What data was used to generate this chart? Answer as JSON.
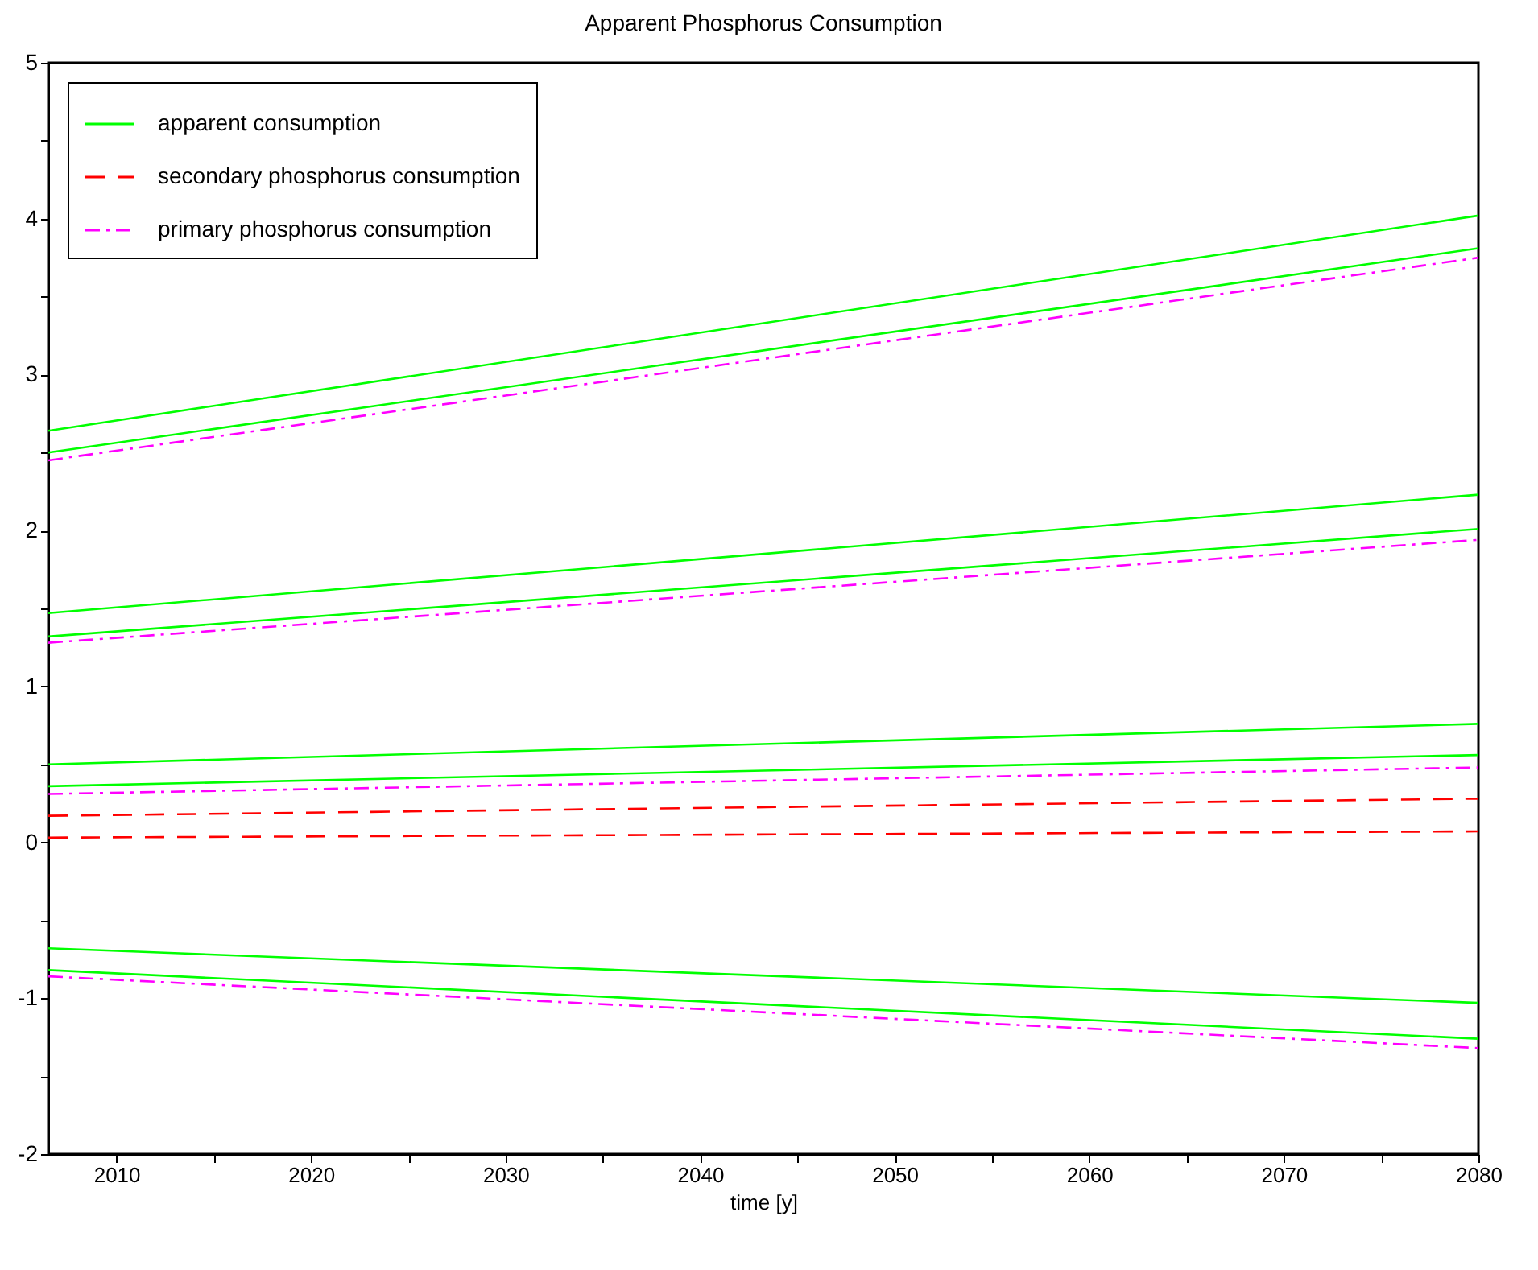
{
  "chart_data": {
    "type": "line",
    "title": "Apparent Phosphorus Consumption",
    "xlabel": "time [y]",
    "xlim": [
      2006.5,
      2080
    ],
    "ylim": [
      -2,
      5
    ],
    "xticks": [
      2010,
      {
        "value": 2015,
        "label": null
      },
      2020,
      {
        "value": 2025,
        "label": null
      },
      2030,
      {
        "value": 2035,
        "label": null
      },
      2040,
      {
        "value": 2045,
        "label": null
      },
      2050,
      {
        "value": 2055,
        "label": null
      },
      2060,
      {
        "value": 2065,
        "label": null
      },
      2070,
      {
        "value": 2075,
        "label": null
      },
      2080
    ],
    "yticks": [
      -2,
      {
        "value": -1.5,
        "label": null
      },
      -1,
      {
        "value": -0.5,
        "label": null
      },
      0,
      {
        "value": 0.5,
        "label": null
      },
      1,
      {
        "value": 1.5,
        "label": null
      },
      2,
      {
        "value": 2.5,
        "label": null
      },
      3,
      {
        "value": 3.5,
        "label": null
      },
      4,
      {
        "value": 4.5,
        "label": null
      },
      5
    ],
    "grid": false,
    "legend": "top left",
    "marker": "none",
    "x": [
      2006.5,
      2080
    ],
    "series": [
      {
        "name": "apparent consumption",
        "color": "#00ff00",
        "line_style": "solid",
        "values": [
          2.64,
          4.02
        ]
      },
      {
        "name": "secondary phosphorus consumption",
        "color": "#ff0000",
        "line_style": "dashed",
        "values": [
          0.17,
          0.28
        ]
      },
      {
        "name": "primary phosphorus consumption",
        "color": "#ff00ff",
        "line_style": "dashdot",
        "values": [
          2.45,
          3.75
        ]
      },
      {
        "color": "#00ff00",
        "line_style": "solid",
        "values": [
          2.5,
          3.81
        ]
      },
      {
        "color": "#00ff00",
        "line_style": "solid",
        "values": [
          1.47,
          2.23
        ]
      },
      {
        "color": "#00ff00",
        "line_style": "solid",
        "values": [
          1.32,
          2.01
        ]
      },
      {
        "color": "#00ff00",
        "line_style": "solid",
        "values": [
          0.5,
          0.76
        ]
      },
      {
        "color": "#00ff00",
        "line_style": "solid",
        "values": [
          0.36,
          0.56
        ]
      },
      {
        "color": "#00ff00",
        "line_style": "solid",
        "values": [
          -0.68,
          -1.03
        ]
      },
      {
        "color": "#00ff00",
        "line_style": "solid",
        "values": [
          -0.82,
          -1.26
        ]
      },
      {
        "color": "#ff00ff",
        "line_style": "dashdot",
        "values": [
          1.28,
          1.94
        ]
      },
      {
        "color": "#ff00ff",
        "line_style": "dashdot",
        "values": [
          0.31,
          0.48
        ]
      },
      {
        "color": "#ff00ff",
        "line_style": "dashdot",
        "values": [
          -0.86,
          -1.32
        ]
      },
      {
        "color": "#ff0000",
        "line_style": "dashed",
        "values": [
          0.03,
          0.07
        ]
      }
    ]
  }
}
